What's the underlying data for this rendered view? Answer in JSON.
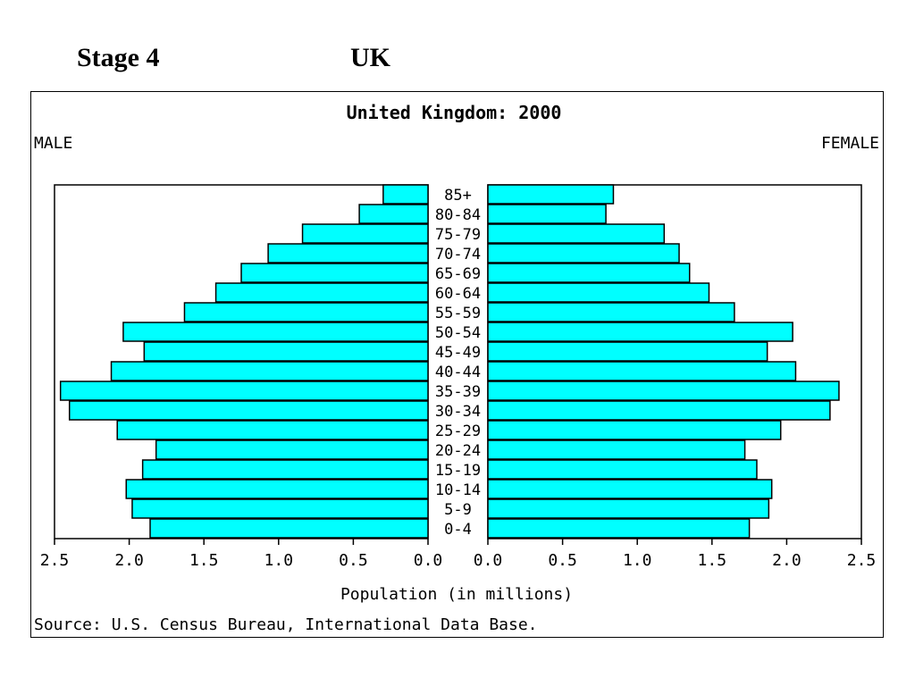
{
  "slide": {
    "stage_label": "Stage 4",
    "country_label": "UK"
  },
  "chart_data": {
    "type": "bar",
    "title": "United Kingdom: 2000",
    "left_label": "MALE",
    "right_label": "FEMALE",
    "xlabel": "Population (in millions)",
    "source": "Source: U.S. Census Bureau, International Data Base.",
    "xlim": [
      0,
      2.5
    ],
    "x_ticks_male": [
      "2.5",
      "2.0",
      "1.5",
      "1.0",
      "0.5",
      "0.0"
    ],
    "x_ticks_female": [
      "0.0",
      "0.5",
      "1.0",
      "1.5",
      "2.0",
      "2.5"
    ],
    "bar_color": "#00ffff",
    "categories": [
      "85+",
      "80-84",
      "75-79",
      "70-74",
      "65-69",
      "60-64",
      "55-59",
      "50-54",
      "45-49",
      "40-44",
      "35-39",
      "30-34",
      "25-29",
      "20-24",
      "15-19",
      "10-14",
      "5-9",
      "0-4"
    ],
    "series": [
      {
        "name": "MALE",
        "values": [
          0.3,
          0.46,
          0.84,
          1.07,
          1.25,
          1.42,
          1.63,
          2.04,
          1.9,
          2.12,
          2.46,
          2.4,
          2.08,
          1.82,
          1.91,
          2.02,
          1.98,
          1.86
        ]
      },
      {
        "name": "FEMALE",
        "values": [
          0.84,
          0.79,
          1.18,
          1.28,
          1.35,
          1.48,
          1.65,
          2.04,
          1.87,
          2.06,
          2.35,
          2.29,
          1.96,
          1.72,
          1.8,
          1.9,
          1.88,
          1.75
        ]
      }
    ]
  }
}
